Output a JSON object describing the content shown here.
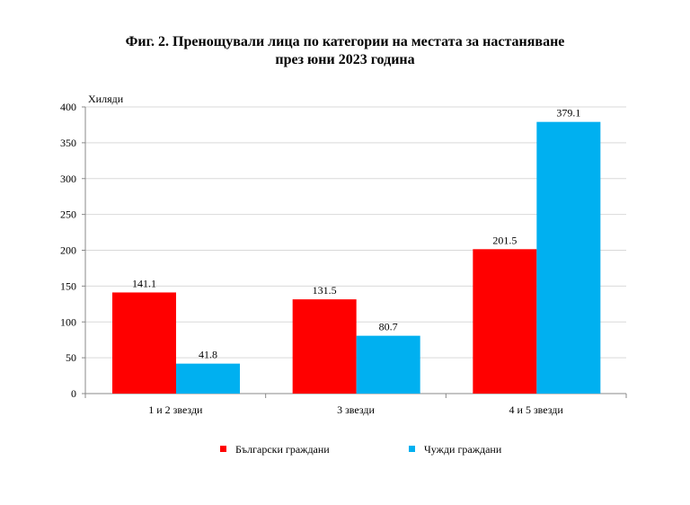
{
  "chart_data": {
    "type": "bar",
    "title_line1": "Фиг. 2. Пренощували лица по категории на местата за настаняване",
    "title_line2": "през юни 2023 година",
    "ylabel": "Хиляди",
    "xlabel": "",
    "ylim": [
      0,
      400
    ],
    "yticks": [
      0,
      50,
      100,
      150,
      200,
      250,
      300,
      350,
      400
    ],
    "grid": true,
    "legend_position": "bottom",
    "categories": [
      "1 и 2 звезди",
      "3 звезди",
      "4 и 5 звезди"
    ],
    "series": [
      {
        "name": "Български граждани",
        "color": "#ff0000",
        "values": [
          141.1,
          131.5,
          201.5
        ]
      },
      {
        "name": "Чужди граждани",
        "color": "#00b0f0",
        "values": [
          41.8,
          80.7,
          379.1
        ]
      }
    ]
  }
}
